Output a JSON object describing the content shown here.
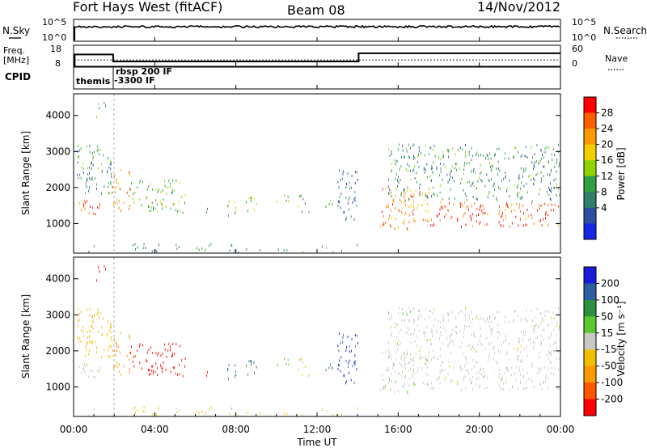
{
  "header": {
    "station": "Fort Hays West (fitACF)",
    "beam": "Beam 08",
    "date": "14/Nov/2012"
  },
  "colors": {
    "frame": "#000000",
    "background": "#ffffff",
    "ground_scatter": "#c8c8c4"
  },
  "strips": {
    "nsky": {
      "label": "N.Sky",
      "left_ticks": [
        "10^5",
        "10^0"
      ],
      "right_label": "N.Search",
      "right_ticks": [
        "10^5",
        "10^0"
      ]
    },
    "freq": {
      "label_line1": "Freq.",
      "label_line2": "[MHz]",
      "left_ticks": [
        "18",
        "8"
      ],
      "right_label": "Nave",
      "right_ticks": [
        "60",
        "0"
      ],
      "freq_steps": [
        {
          "from_hour": 0.05,
          "to_hour": 1.95,
          "mhz": 13.6
        },
        {
          "from_hour": 1.95,
          "to_hour": 14.05,
          "mhz": 10.3
        },
        {
          "from_hour": 14.05,
          "to_hour": 24.0,
          "mhz": 14.2
        }
      ],
      "nave_level": 18
    },
    "cpid": {
      "label": "CPID",
      "modes": [
        "themis",
        "rbsp 200 IF",
        "-3300 IF"
      ]
    }
  },
  "panels": {
    "power": {
      "ylabel": "Slant Range [km]",
      "cbar_title": "Power [dB]",
      "cbar_labels": [
        "28",
        "24",
        "20",
        "16",
        "12",
        "8",
        "4"
      ],
      "cbar_colors": [
        "#ff0000",
        "#ff5f00",
        "#ff9a00",
        "#f2d000",
        "#8fd400",
        "#30a040",
        "#2f7f6a",
        "#2c4fa0",
        "#1628e6"
      ]
    },
    "velocity": {
      "ylabel": "Slant Range [km]",
      "cbar_title": "Velocity [m s⁻¹]",
      "cbar_labels": [
        "200",
        "100",
        "50",
        "15",
        "-15",
        "-50",
        "-100",
        "-200"
      ],
      "cbar_colors": [
        "#1a1adc",
        "#2c5fa0",
        "#2f8f3c",
        "#5ac82e",
        "#c8c8c4",
        "#f0c000",
        "#ff9900",
        "#ff5500",
        "#ff0000"
      ]
    },
    "y_ticks": [
      "1000",
      "2000",
      "3000",
      "4000"
    ]
  },
  "xaxis": {
    "ticks": [
      "00:00",
      "04:00",
      "08:00",
      "12:00",
      "16:00",
      "20:00",
      "00:00"
    ],
    "label": "Time UT"
  },
  "chart_data": {
    "type": "heatmap",
    "title": "Fort Hays West (fitACF)  Beam 08  14/Nov/2012",
    "xlabel": "Time UT",
    "ylabel": "Slant Range [km]",
    "xlim_hours": [
      0,
      24
    ],
    "ylim_km": [
      180,
      4600
    ],
    "power_db_range": [
      0,
      32
    ],
    "velocity_range": [
      -250,
      250
    ],
    "echo_regions": [
      {
        "t0": 1.1,
        "t1": 1.6,
        "r0": 3950,
        "r1": 4350,
        "power_db": 12,
        "velocity": -250
      },
      {
        "t0": 0.1,
        "t1": 1.3,
        "r0": 1250,
        "r1": 1800,
        "power_db": 28,
        "velocity": -5
      },
      {
        "t0": 0.1,
        "t1": 1.9,
        "r0": 1800,
        "r1": 3200,
        "power_db": 10,
        "velocity": -60
      },
      {
        "t0": 1.9,
        "t1": 2.8,
        "r0": 1300,
        "r1": 2500,
        "power_db": 24,
        "velocity": -120
      },
      {
        "t0": 2.8,
        "t1": 5.5,
        "r0": 1300,
        "r1": 2200,
        "power_db": 14,
        "velocity": -250
      },
      {
        "t0": 6.4,
        "t1": 6.7,
        "r0": 1300,
        "r1": 1700,
        "power_db": 10,
        "velocity": -250
      },
      {
        "t0": 7.5,
        "t1": 8.0,
        "r0": 1200,
        "r1": 1800,
        "power_db": 16,
        "velocity": 150
      },
      {
        "t0": 8.4,
        "t1": 9.0,
        "r0": 1200,
        "r1": 1800,
        "power_db": 14,
        "velocity": 150
      },
      {
        "t0": 10.0,
        "t1": 10.6,
        "r0": 1400,
        "r1": 1800,
        "power_db": 14,
        "velocity": 40
      },
      {
        "t0": 11.0,
        "t1": 11.6,
        "r0": 1300,
        "r1": 1800,
        "power_db": 12,
        "velocity": -40
      },
      {
        "t0": 12.4,
        "t1": 12.9,
        "r0": 1400,
        "r1": 1700,
        "power_db": 14,
        "velocity": 150
      },
      {
        "t0": 13.0,
        "t1": 14.0,
        "r0": 1100,
        "r1": 2500,
        "power_db": 8,
        "velocity": 200
      },
      {
        "t0": 15.0,
        "t1": 17.5,
        "r0": 800,
        "r1": 2000,
        "power_db": 24,
        "velocity": 5
      },
      {
        "t0": 17.5,
        "t1": 24.0,
        "r0": 900,
        "r1": 1600,
        "power_db": 28,
        "velocity": 0
      },
      {
        "t0": 15.5,
        "t1": 24.0,
        "r0": 1600,
        "r1": 3200,
        "power_db": 10,
        "velocity": 0
      },
      {
        "t0": 0.5,
        "t1": 14.0,
        "r0": 190,
        "r1": 440,
        "power_db": 10,
        "velocity": -40
      }
    ]
  }
}
